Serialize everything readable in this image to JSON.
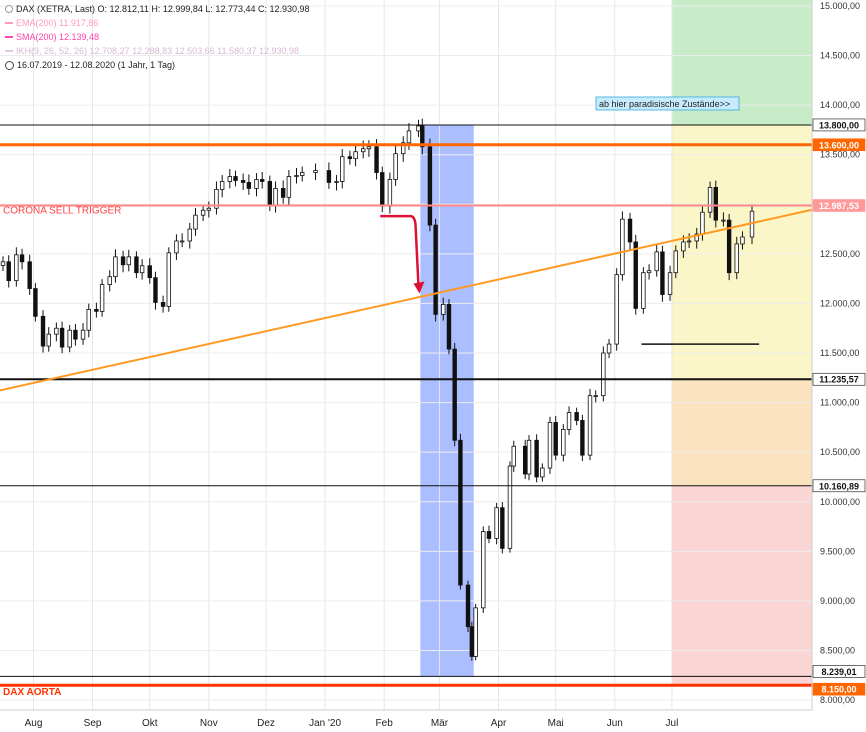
{
  "legend": {
    "main": "DAX (XETRA, Last)  O: 12.812,11  H: 12.999,84  L: 12.773,44  C: 12.930,98",
    "ema": "EMA(200)  11.917,86",
    "sma": "SMA(200)  12.139,48",
    "ich": "IKH(9, 26, 52, 26)  12.708,27  12.288,83  12.503,66  11.580,37  12.930,98",
    "period": "16.07.2019 - 12.08.2020  (1 Jahr, 1 Tag)"
  },
  "colors": {
    "accent": "#ff6600",
    "ema": "#ff99bb",
    "sma": "#ff44aa",
    "ich": "#e6c8e6",
    "corona_line": "#ff8888",
    "aorta_line": "#ff3300",
    "trend_line": "#ff9922",
    "blue_band": "#8fa8ff",
    "green_zone": "#c8ebc8",
    "yellow_zone": "#fbf6c8",
    "orange_zone": "#fbe3c0",
    "red_zone": "#fbd4d4",
    "red_arrow": "#dd1133"
  },
  "chart_data": {
    "type": "candlestick",
    "xaxis_labels": [
      "Aug",
      "Sep",
      "Okt",
      "Nov",
      "Dez",
      "Jan '20",
      "Feb",
      "Mär",
      "Apr",
      "Mai",
      "Jun",
      "Jul"
    ],
    "yaxis_ticks": [
      "8.000,00",
      "8.500,00",
      "9.000,00",
      "9.500,00",
      "10.000,00",
      "10.500,00",
      "11.000,00",
      "11.500,00",
      "12.000,00",
      "12.500,00",
      "13.000,00",
      "13.500,00",
      "14.000,00",
      "14.500,00",
      "15.000,00"
    ],
    "ylim": [
      7900,
      15060
    ],
    "grid": true,
    "horizontal_levels": [
      {
        "value": 13800,
        "label": "13.800,00",
        "style": "black-thin"
      },
      {
        "value": 13600,
        "label": "13.600,00",
        "style": "orange-thick"
      },
      {
        "value": 12987.53,
        "label": "12.987,53",
        "style": "red"
      },
      {
        "value": 11235.57,
        "label": "11.235,57",
        "style": "black-thick"
      },
      {
        "value": 10160.89,
        "label": "10.160,89",
        "style": "black-thin"
      },
      {
        "value": 8239.01,
        "label": "8.239,01",
        "style": "black-thin"
      },
      {
        "value": 8150,
        "label": "8.150,00",
        "style": "red-thick"
      }
    ],
    "annotations": {
      "corona": "CORONA SELL TRIGGER",
      "aorta": "DAX AORTA",
      "paradise": "ab hier paradisische Zustände>>"
    },
    "trendline": [
      {
        "date": "2019-07-16",
        "value": 11130
      },
      {
        "date": "2020-08-12",
        "value": 12810
      }
    ],
    "support_line": {
      "from": "2020-06-15",
      "to": "2020-07-31",
      "value": 11590
    },
    "close_series": [
      [
        "2019-07-16",
        12420
      ],
      [
        "2019-07-19",
        12230
      ],
      [
        "2019-07-23",
        12490
      ],
      [
        "2019-07-26",
        12420
      ],
      [
        "2019-07-30",
        12150
      ],
      [
        "2019-08-02",
        11870
      ],
      [
        "2019-08-06",
        11570
      ],
      [
        "2019-08-09",
        11690
      ],
      [
        "2019-08-13",
        11750
      ],
      [
        "2019-08-16",
        11560
      ],
      [
        "2019-08-20",
        11730
      ],
      [
        "2019-08-23",
        11640
      ],
      [
        "2019-08-27",
        11730
      ],
      [
        "2019-08-30",
        11940
      ],
      [
        "2019-09-03",
        11920
      ],
      [
        "2019-09-06",
        12190
      ],
      [
        "2019-09-10",
        12270
      ],
      [
        "2019-09-13",
        12470
      ],
      [
        "2019-09-17",
        12390
      ],
      [
        "2019-09-20",
        12470
      ],
      [
        "2019-09-24",
        12310
      ],
      [
        "2019-09-27",
        12380
      ],
      [
        "2019-10-01",
        12260
      ],
      [
        "2019-10-04",
        12010
      ],
      [
        "2019-10-08",
        11970
      ],
      [
        "2019-10-11",
        12510
      ],
      [
        "2019-10-15",
        12630
      ],
      [
        "2019-10-18",
        12630
      ],
      [
        "2019-10-22",
        12750
      ],
      [
        "2019-10-25",
        12890
      ],
      [
        "2019-10-29",
        12940
      ],
      [
        "2019-11-01",
        12960
      ],
      [
        "2019-11-05",
        13150
      ],
      [
        "2019-11-08",
        13230
      ],
      [
        "2019-11-12",
        13280
      ],
      [
        "2019-11-15",
        13240
      ],
      [
        "2019-11-19",
        13220
      ],
      [
        "2019-11-22",
        13160
      ],
      [
        "2019-11-26",
        13250
      ],
      [
        "2019-11-29",
        13230
      ],
      [
        "2019-12-03",
        12990
      ],
      [
        "2019-12-06",
        13160
      ],
      [
        "2019-12-10",
        13070
      ],
      [
        "2019-12-13",
        13280
      ],
      [
        "2019-12-17",
        13290
      ],
      [
        "2019-12-20",
        13320
      ],
      [
        "2019-12-27",
        13340
      ],
      [
        "2020-01-03",
        13220
      ],
      [
        "2020-01-07",
        13230
      ],
      [
        "2020-01-10",
        13480
      ],
      [
        "2020-01-14",
        13460
      ],
      [
        "2020-01-17",
        13530
      ],
      [
        "2020-01-21",
        13560
      ],
      [
        "2020-01-24",
        13580
      ],
      [
        "2020-01-28",
        13320
      ],
      [
        "2020-01-31",
        12980
      ],
      [
        "2020-02-04",
        13250
      ],
      [
        "2020-02-07",
        13510
      ],
      [
        "2020-02-11",
        13620
      ],
      [
        "2020-02-14",
        13740
      ],
      [
        "2020-02-19",
        13790
      ],
      [
        "2020-02-21",
        13580
      ],
      [
        "2020-02-25",
        12790
      ],
      [
        "2020-02-28",
        11890
      ],
      [
        "2020-03-03",
        11990
      ],
      [
        "2020-03-06",
        11540
      ],
      [
        "2020-03-09",
        10620
      ],
      [
        "2020-03-12",
        9160
      ],
      [
        "2020-03-16",
        8740
      ],
      [
        "2020-03-18",
        8440
      ],
      [
        "2020-03-20",
        8930
      ],
      [
        "2020-03-24",
        9700
      ],
      [
        "2020-03-27",
        9630
      ],
      [
        "2020-03-31",
        9940
      ],
      [
        "2020-04-03",
        9530
      ],
      [
        "2020-04-07",
        10360
      ],
      [
        "2020-04-09",
        10560
      ],
      [
        "2020-04-15",
        10280
      ],
      [
        "2020-04-17",
        10620
      ],
      [
        "2020-04-21",
        10250
      ],
      [
        "2020-04-24",
        10340
      ],
      [
        "2020-04-28",
        10800
      ],
      [
        "2020-05-01",
        10470
      ],
      [
        "2020-05-05",
        10730
      ],
      [
        "2020-05-08",
        10900
      ],
      [
        "2020-05-12",
        10820
      ],
      [
        "2020-05-15",
        10470
      ],
      [
        "2020-05-19",
        11070
      ],
      [
        "2020-05-22",
        11070
      ],
      [
        "2020-05-26",
        11500
      ],
      [
        "2020-05-29",
        11590
      ],
      [
        "2020-06-02",
        12290
      ],
      [
        "2020-06-05",
        12850
      ],
      [
        "2020-06-09",
        12620
      ],
      [
        "2020-06-12",
        11950
      ],
      [
        "2020-06-16",
        12310
      ],
      [
        "2020-06-19",
        12330
      ],
      [
        "2020-06-23",
        12520
      ],
      [
        "2020-06-26",
        12090
      ],
      [
        "2020-06-30",
        12310
      ],
      [
        "2020-07-03",
        12530
      ],
      [
        "2020-07-07",
        12620
      ],
      [
        "2020-07-10",
        12630
      ],
      [
        "2020-07-14",
        12700
      ],
      [
        "2020-07-17",
        12920
      ],
      [
        "2020-07-21",
        13170
      ],
      [
        "2020-07-24",
        12840
      ],
      [
        "2020-07-28",
        12840
      ],
      [
        "2020-07-31",
        12310
      ],
      [
        "2020-08-04",
        12600
      ],
      [
        "2020-08-07",
        12670
      ],
      [
        "2020-08-12",
        12930
      ]
    ]
  }
}
